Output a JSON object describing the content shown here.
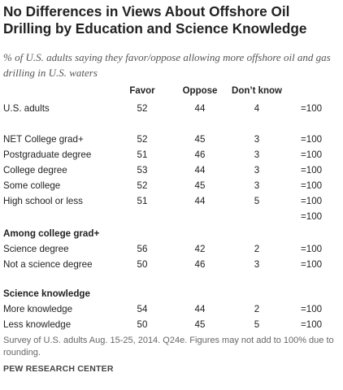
{
  "title": "No Differences in Views About Offshore Oil Drilling by Education and Science Knowledge",
  "subtitle": "% of U.S. adults saying they favor/oppose allowing more offshore oil and gas drilling in U.S. waters",
  "note": "Survey of U.S. adults Aug. 15-25, 2014. Q24e. Figures may not add to 100% due to rounding.",
  "source": "PEW RESEARCH CENTER",
  "chart_data": {
    "type": "table",
    "columns": [
      "Favor",
      "Oppose",
      "Don’t know"
    ],
    "rows": [
      {
        "label": "U.S. adults",
        "kind": "row",
        "values": [
          "52",
          "44",
          "4"
        ],
        "total": "=100"
      },
      {
        "label": "NET College grad+",
        "kind": "row",
        "values": [
          "52",
          "45",
          "3"
        ],
        "total": "=100"
      },
      {
        "label": " Postgraduate degree",
        "kind": "row",
        "values": [
          "51",
          "46",
          "3"
        ],
        "total": "=100"
      },
      {
        "label": " College degree",
        "kind": "row",
        "values": [
          "53",
          "44",
          "3"
        ],
        "total": "=100"
      },
      {
        "label": "Some college",
        "kind": "row",
        "values": [
          "52",
          "45",
          "3"
        ],
        "total": "=100"
      },
      {
        "label": "High school or less",
        "kind": "row",
        "values": [
          "51",
          "44",
          "5"
        ],
        "total": "=100"
      },
      {
        "label": "",
        "kind": "row",
        "values": [
          "",
          "",
          ""
        ],
        "total": "=100"
      },
      {
        "label": "Among college grad+",
        "kind": "section",
        "values": [],
        "total": ""
      },
      {
        "label": "Science degree",
        "kind": "row",
        "values": [
          "56",
          "42",
          "2"
        ],
        "total": "=100"
      },
      {
        "label": "Not a science degree",
        "kind": "row",
        "values": [
          "50",
          "46",
          "3"
        ],
        "total": "=100"
      },
      {
        "label": "Science knowledge",
        "kind": "section",
        "values": [],
        "total": ""
      },
      {
        "label": "More knowledge",
        "kind": "row",
        "values": [
          "54",
          "44",
          "2"
        ],
        "total": "=100"
      },
      {
        "label": "Less knowledge",
        "kind": "row",
        "values": [
          "50",
          "45",
          "5"
        ],
        "total": "=100"
      }
    ]
  }
}
